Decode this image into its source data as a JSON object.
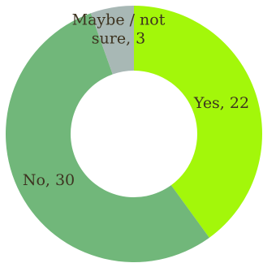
{
  "chart_data": {
    "type": "pie",
    "donut": true,
    "categories": [
      "Yes",
      "No",
      "Maybe / not sure"
    ],
    "values": [
      22,
      30,
      3
    ],
    "colors": [
      "#a3f70a",
      "#71b77a",
      "#a8b8b5"
    ],
    "labels": [
      [
        "Yes, 22"
      ],
      [
        "No, 30"
      ],
      [
        "Maybe / not",
        "sure, 3"
      ]
    ],
    "start": "top",
    "direction": "clockwise",
    "legend": "none"
  }
}
